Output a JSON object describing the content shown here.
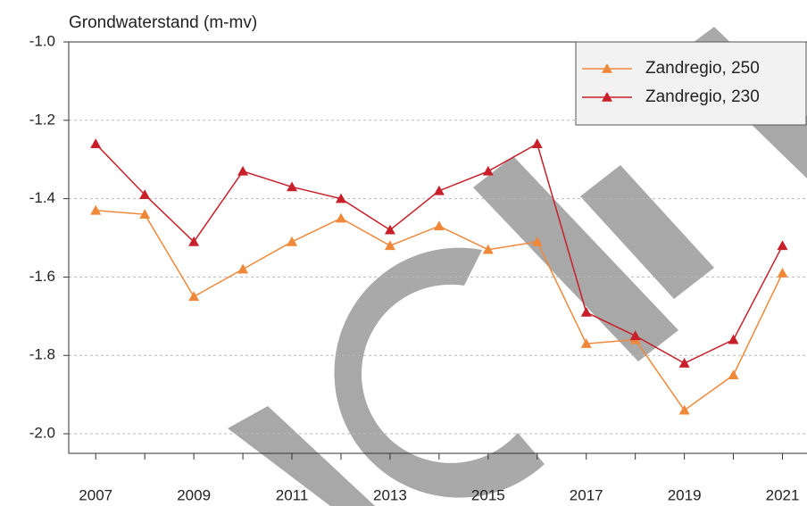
{
  "chart_data": {
    "type": "line",
    "y_label": "Grondwaterstand (m-mv)",
    "x": [
      2007,
      2008,
      2009,
      2010,
      2011,
      2012,
      2013,
      2014,
      2015,
      2016,
      2017,
      2018,
      2019,
      2020,
      2021
    ],
    "series": [
      {
        "name": "Zandregio, 250",
        "color": "#f0883a",
        "values": [
          -1.43,
          -1.44,
          -1.65,
          -1.58,
          -1.51,
          -1.45,
          -1.52,
          -1.47,
          -1.53,
          -1.51,
          -1.77,
          -1.76,
          -1.94,
          -1.85,
          -1.59
        ]
      },
      {
        "name": "Zandregio, 230",
        "color": "#c8202a",
        "values": [
          -1.26,
          -1.39,
          -1.51,
          -1.33,
          -1.37,
          -1.4,
          -1.48,
          -1.38,
          -1.33,
          -1.26,
          -1.69,
          -1.75,
          -1.82,
          -1.76,
          -1.52
        ]
      }
    ],
    "xlim": [
      2006.45,
      2021.5
    ],
    "xticks": [
      2007,
      2009,
      2011,
      2013,
      2015,
      2017,
      2019,
      2021
    ],
    "x_minor_ticks": [
      2008,
      2010,
      2012,
      2014,
      2016,
      2018,
      2020
    ],
    "ylim": [
      -2.05,
      -1.0
    ],
    "yticks": [
      {
        "value": -2,
        "label": "-2.0"
      },
      -1.8,
      -1.6,
      -1.4,
      -1.2,
      {
        "value": -1,
        "label": "-1.0"
      }
    ],
    "grid": true,
    "legend": "top-right"
  }
}
